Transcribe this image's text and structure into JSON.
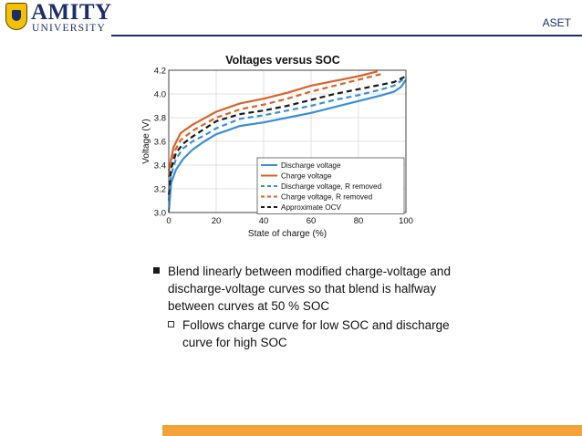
{
  "header": {
    "logo_name": "AMITY",
    "logo_sub": "UNIVERSITY",
    "section": "ASET"
  },
  "bullets": {
    "main": "Blend linearly between modified charge-voltage and discharge-voltage curves so that blend is halfway between curves at 50 % SOC",
    "sub": "Follows charge curve for low SOC and discharge curve for high SOC"
  },
  "colors": {
    "blue": "#3a8fd8",
    "orange": "#d9642a",
    "navy": "#1d2d6b",
    "accent": "#f2a33a"
  },
  "chart_data": {
    "type": "line",
    "title": "Voltages versus SOC",
    "xlabel": "State of charge (%)",
    "ylabel": "Voltage (V)",
    "xlim": [
      0,
      100
    ],
    "ylim": [
      3.0,
      4.2
    ],
    "xticks": [
      "0",
      "20",
      "40",
      "60",
      "80",
      "100"
    ],
    "yticks": [
      "3.0",
      "3.2",
      "3.4",
      "3.6",
      "3.8",
      "4.0",
      "4.2"
    ],
    "grid": true,
    "legend_position": "bottom-right",
    "series": [
      {
        "name": "Discharge voltage",
        "color": "#3a8fd8",
        "dash": "solid",
        "x": [
          0,
          1,
          3,
          6,
          10,
          15,
          20,
          30,
          40,
          50,
          60,
          70,
          80,
          90,
          95,
          98,
          100
        ],
        "y": [
          3.0,
          3.25,
          3.36,
          3.45,
          3.53,
          3.6,
          3.66,
          3.73,
          3.76,
          3.8,
          3.84,
          3.89,
          3.94,
          3.99,
          4.02,
          4.06,
          4.12
        ]
      },
      {
        "name": "Charge voltage",
        "color": "#d9642a",
        "dash": "solid",
        "x": [
          0,
          2,
          5,
          10,
          20,
          30,
          40,
          50,
          60,
          70,
          80,
          88
        ],
        "y": [
          3.35,
          3.55,
          3.67,
          3.74,
          3.85,
          3.92,
          3.96,
          4.01,
          4.07,
          4.11,
          4.15,
          4.19
        ]
      },
      {
        "name": "Discharge voltage, R removed",
        "color": "#3a8fd8",
        "dash": "dashed",
        "x": [
          0,
          1,
          3,
          6,
          10,
          15,
          20,
          30,
          40,
          50,
          60,
          70,
          80,
          90,
          95,
          100
        ],
        "y": [
          3.1,
          3.32,
          3.45,
          3.54,
          3.6,
          3.65,
          3.71,
          3.79,
          3.82,
          3.86,
          3.9,
          3.95,
          3.99,
          4.04,
          4.07,
          4.14
        ]
      },
      {
        "name": "Charge voltage, R removed",
        "color": "#d9642a",
        "dash": "dashed",
        "x": [
          0,
          2,
          5,
          10,
          20,
          30,
          40,
          50,
          60,
          70,
          80,
          90
        ],
        "y": [
          3.3,
          3.5,
          3.61,
          3.69,
          3.8,
          3.87,
          3.91,
          3.96,
          4.02,
          4.07,
          4.12,
          4.17
        ]
      },
      {
        "name": "Approximate OCV",
        "color": "#1a1a1a",
        "dash": "dashed",
        "x": [
          0,
          1,
          3,
          6,
          10,
          20,
          30,
          40,
          50,
          60,
          70,
          80,
          90,
          95,
          100
        ],
        "y": [
          3.15,
          3.37,
          3.5,
          3.58,
          3.64,
          3.77,
          3.83,
          3.86,
          3.9,
          3.95,
          4.0,
          4.04,
          4.08,
          4.1,
          4.15
        ]
      }
    ]
  }
}
